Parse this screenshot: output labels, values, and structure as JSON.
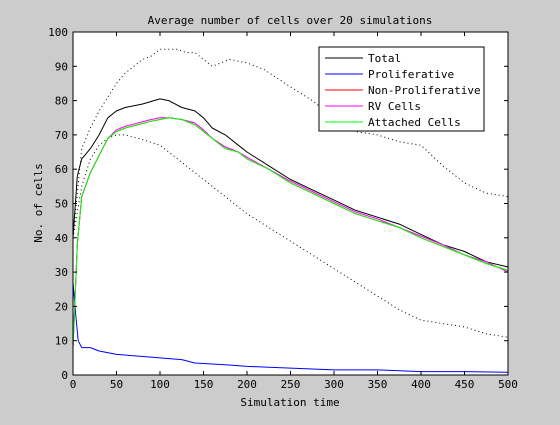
{
  "chart_data": {
    "type": "line",
    "title": "Average number of cells over 20 simulations",
    "xlabel": "Simulation time",
    "ylabel": "No. of cells",
    "xlim": [
      0,
      500
    ],
    "ylim": [
      0,
      100
    ],
    "xticks": [
      0,
      50,
      100,
      150,
      200,
      250,
      300,
      350,
      400,
      450,
      500
    ],
    "yticks": [
      0,
      10,
      20,
      30,
      40,
      50,
      60,
      70,
      80,
      90,
      100
    ],
    "grid": false,
    "legend_position": "top-right",
    "series": [
      {
        "name": "Total",
        "color": "#000000",
        "style": "solid",
        "points": [
          [
            0,
            40
          ],
          [
            5,
            58
          ],
          [
            10,
            63
          ],
          [
            20,
            66
          ],
          [
            30,
            70
          ],
          [
            40,
            75
          ],
          [
            50,
            77
          ],
          [
            60,
            78
          ],
          [
            80,
            79
          ],
          [
            100,
            80.5
          ],
          [
            110,
            80
          ],
          [
            125,
            78
          ],
          [
            140,
            77
          ],
          [
            150,
            75
          ],
          [
            160,
            72
          ],
          [
            175,
            70
          ],
          [
            190,
            67
          ],
          [
            200,
            65
          ],
          [
            225,
            61
          ],
          [
            250,
            57
          ],
          [
            275,
            54
          ],
          [
            300,
            51
          ],
          [
            325,
            48
          ],
          [
            350,
            46
          ],
          [
            375,
            44
          ],
          [
            400,
            41
          ],
          [
            425,
            38
          ],
          [
            450,
            36
          ],
          [
            475,
            33
          ],
          [
            500,
            31.5
          ]
        ]
      },
      {
        "name": "Proliferative",
        "color": "#0000ff",
        "style": "solid",
        "points": [
          [
            0,
            27
          ],
          [
            3,
            18
          ],
          [
            6,
            10
          ],
          [
            10,
            8
          ],
          [
            20,
            8
          ],
          [
            30,
            7
          ],
          [
            50,
            6
          ],
          [
            75,
            5.5
          ],
          [
            100,
            5
          ],
          [
            125,
            4.5
          ],
          [
            140,
            3.5
          ],
          [
            175,
            3
          ],
          [
            200,
            2.5
          ],
          [
            250,
            2
          ],
          [
            300,
            1.5
          ],
          [
            350,
            1.5
          ],
          [
            400,
            1
          ],
          [
            450,
            1
          ],
          [
            500,
            0.8
          ]
        ]
      },
      {
        "name": "Non-Proliferative",
        "color": "#ff0000",
        "style": "solid",
        "points": [
          [
            0,
            8
          ],
          [
            5,
            38
          ],
          [
            10,
            52
          ],
          [
            20,
            59
          ],
          [
            30,
            64
          ],
          [
            40,
            69
          ],
          [
            50,
            71
          ],
          [
            60,
            72
          ],
          [
            75,
            73
          ],
          [
            90,
            74
          ],
          [
            100,
            74.5
          ],
          [
            110,
            75
          ],
          [
            125,
            74.5
          ],
          [
            140,
            73
          ],
          [
            150,
            71
          ],
          [
            160,
            69
          ],
          [
            175,
            66
          ],
          [
            190,
            65
          ],
          [
            200,
            63
          ],
          [
            225,
            60
          ],
          [
            250,
            56
          ],
          [
            275,
            53
          ],
          [
            300,
            50
          ],
          [
            325,
            47
          ],
          [
            350,
            45
          ],
          [
            375,
            43
          ],
          [
            400,
            40
          ],
          [
            425,
            37.5
          ],
          [
            450,
            35
          ],
          [
            475,
            32.5
          ],
          [
            500,
            30.5
          ]
        ]
      },
      {
        "name": "RV Cells",
        "color": "#ff00ff",
        "style": "solid",
        "points": [
          [
            0,
            8
          ],
          [
            5,
            38
          ],
          [
            10,
            52
          ],
          [
            20,
            59
          ],
          [
            30,
            64
          ],
          [
            40,
            69
          ],
          [
            50,
            71.5
          ],
          [
            60,
            72.5
          ],
          [
            75,
            73.5
          ],
          [
            90,
            74.5
          ],
          [
            100,
            75
          ],
          [
            110,
            75
          ],
          [
            125,
            74.5
          ],
          [
            140,
            73.5
          ],
          [
            150,
            71.5
          ],
          [
            160,
            69
          ],
          [
            175,
            66.5
          ],
          [
            190,
            65
          ],
          [
            200,
            63.5
          ],
          [
            225,
            60
          ],
          [
            250,
            56.5
          ],
          [
            275,
            53.5
          ],
          [
            300,
            50.5
          ],
          [
            325,
            47.5
          ],
          [
            350,
            45.5
          ],
          [
            375,
            43
          ],
          [
            400,
            40.5
          ],
          [
            425,
            38
          ],
          [
            450,
            35
          ],
          [
            475,
            33
          ],
          [
            500,
            30
          ]
        ]
      },
      {
        "name": "Attached Cells",
        "color": "#00ff00",
        "style": "solid",
        "points": [
          [
            0,
            8
          ],
          [
            5,
            38
          ],
          [
            10,
            52
          ],
          [
            20,
            59
          ],
          [
            30,
            64
          ],
          [
            40,
            69
          ],
          [
            50,
            71
          ],
          [
            60,
            72
          ],
          [
            75,
            73
          ],
          [
            90,
            74
          ],
          [
            100,
            74.5
          ],
          [
            110,
            75
          ],
          [
            125,
            74.5
          ],
          [
            140,
            73
          ],
          [
            150,
            71
          ],
          [
            160,
            69
          ],
          [
            175,
            66
          ],
          [
            190,
            65
          ],
          [
            200,
            63
          ],
          [
            225,
            60
          ],
          [
            250,
            56
          ],
          [
            275,
            53
          ],
          [
            300,
            50
          ],
          [
            325,
            47
          ],
          [
            350,
            45
          ],
          [
            375,
            43
          ],
          [
            400,
            40
          ],
          [
            425,
            37.5
          ],
          [
            450,
            35
          ],
          [
            475,
            32.5
          ],
          [
            500,
            30.5
          ]
        ]
      },
      {
        "name": "",
        "color": "#000000",
        "style": "dotted",
        "points": [
          [
            0,
            40
          ],
          [
            10,
            66
          ],
          [
            20,
            72
          ],
          [
            30,
            77
          ],
          [
            40,
            81
          ],
          [
            50,
            85
          ],
          [
            60,
            88
          ],
          [
            70,
            90
          ],
          [
            80,
            92
          ],
          [
            90,
            93
          ],
          [
            100,
            95
          ],
          [
            110,
            95
          ],
          [
            120,
            95
          ],
          [
            130,
            94
          ],
          [
            140,
            94
          ],
          [
            150,
            92
          ],
          [
            160,
            90
          ],
          [
            170,
            91
          ],
          [
            180,
            92
          ],
          [
            200,
            91
          ],
          [
            220,
            89
          ],
          [
            250,
            84
          ],
          [
            275,
            80
          ],
          [
            300,
            75
          ],
          [
            325,
            71
          ],
          [
            350,
            70
          ],
          [
            375,
            68
          ],
          [
            400,
            67
          ],
          [
            425,
            61
          ],
          [
            450,
            56
          ],
          [
            475,
            53
          ],
          [
            500,
            52
          ]
        ]
      },
      {
        "name": "",
        "color": "#000000",
        "style": "dotted",
        "points": [
          [
            0,
            40
          ],
          [
            10,
            55
          ],
          [
            20,
            63
          ],
          [
            30,
            67
          ],
          [
            40,
            69
          ],
          [
            50,
            70
          ],
          [
            60,
            70
          ],
          [
            75,
            69
          ],
          [
            100,
            67
          ],
          [
            125,
            62
          ],
          [
            150,
            57
          ],
          [
            175,
            52
          ],
          [
            200,
            47
          ],
          [
            225,
            43
          ],
          [
            250,
            39
          ],
          [
            275,
            35
          ],
          [
            300,
            31
          ],
          [
            325,
            27
          ],
          [
            350,
            23
          ],
          [
            375,
            19
          ],
          [
            400,
            16
          ],
          [
            425,
            15
          ],
          [
            450,
            14
          ],
          [
            475,
            12
          ],
          [
            500,
            11
          ]
        ]
      }
    ]
  }
}
